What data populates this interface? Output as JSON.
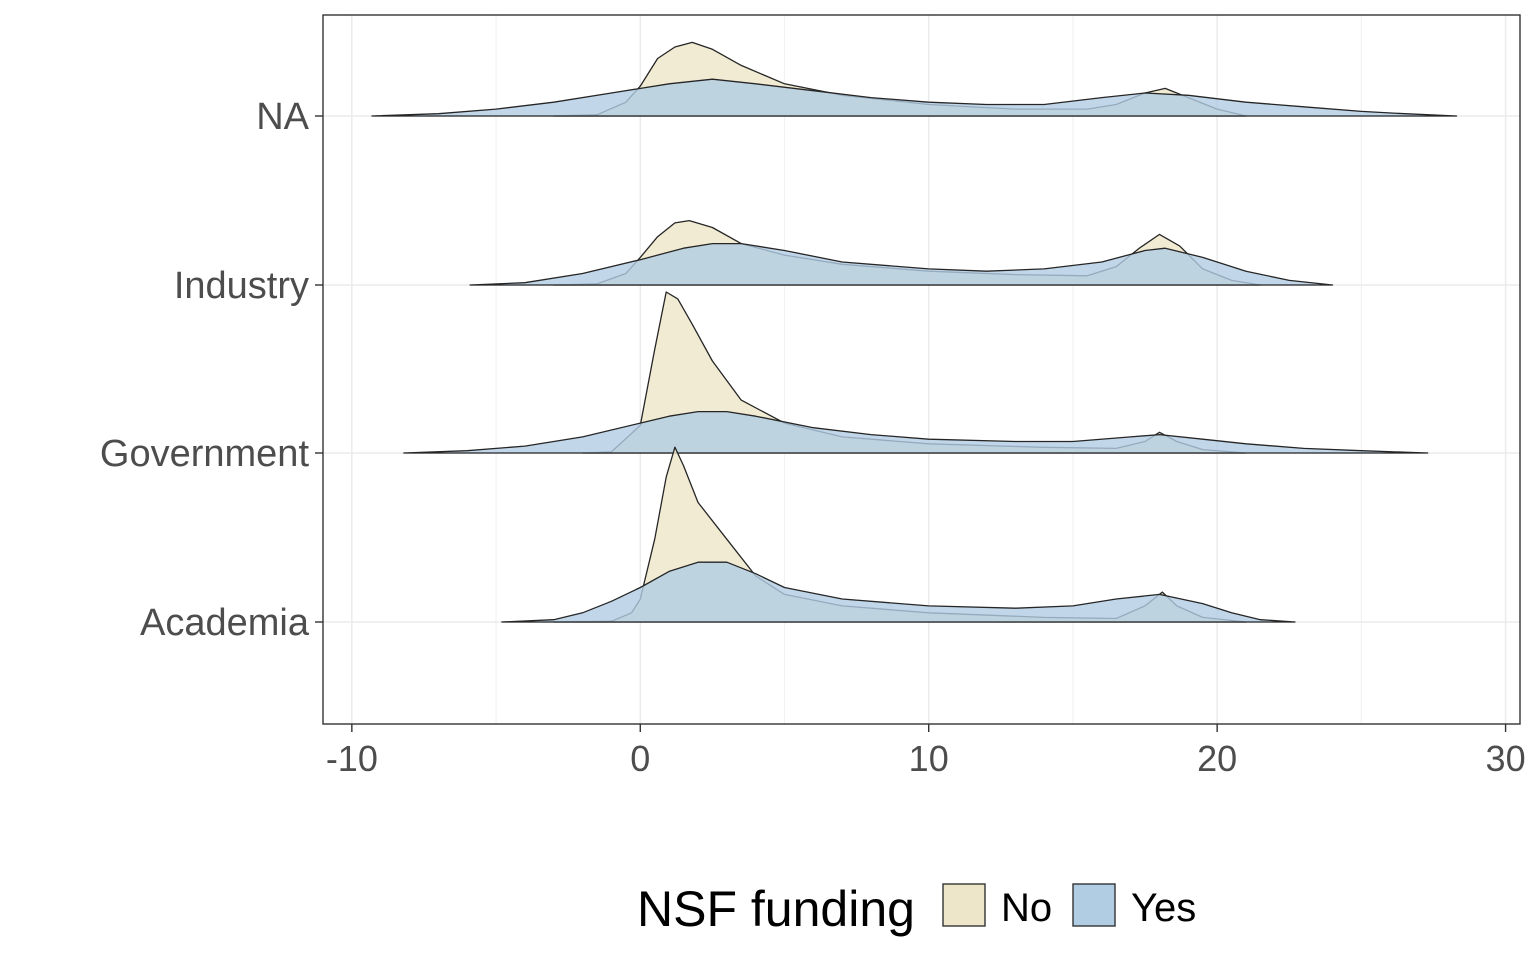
{
  "chart_data": {
    "type": "ridgeline-density",
    "title": "",
    "xlabel": "",
    "ylabel": "",
    "xlim": [
      -11,
      30.5
    ],
    "x_ticks": [
      -10,
      0,
      10,
      20,
      30
    ],
    "x_tick_labels": [
      "-10",
      "0",
      "10",
      "20",
      "30"
    ],
    "categories": [
      "Academia",
      "Government",
      "Industry",
      "NA"
    ],
    "grid": true,
    "legend": {
      "title": "NSF funding",
      "position": "bottom",
      "entries": [
        {
          "label": "No",
          "color": "#EEE6C8"
        },
        {
          "label": "Yes",
          "color": "#B1CDE3"
        }
      ]
    },
    "series": [
      {
        "name": "No",
        "color": "#EEE6C8",
        "ridges": [
          {
            "category": "Academia",
            "points": [
              [
                -3,
                0
              ],
              [
                -1,
                0.003
              ],
              [
                -0.3,
                0.04
              ],
              [
                0,
                0.1
              ],
              [
                0.5,
                0.36
              ],
              [
                0.9,
                0.63
              ],
              [
                1.2,
                0.76
              ],
              [
                1.5,
                0.68
              ],
              [
                2,
                0.52
              ],
              [
                3,
                0.36
              ],
              [
                4,
                0.2
              ],
              [
                5,
                0.12
              ],
              [
                7,
                0.07
              ],
              [
                10,
                0.04
              ],
              [
                14,
                0.02
              ],
              [
                16.5,
                0.015
              ],
              [
                17.5,
                0.07
              ],
              [
                18.1,
                0.13
              ],
              [
                18.6,
                0.07
              ],
              [
                19.5,
                0.02
              ],
              [
                21,
                0
              ]
            ]
          },
          {
            "category": "Government",
            "points": [
              [
                -2,
                0
              ],
              [
                -1,
                0.005
              ],
              [
                0,
                0.12
              ],
              [
                0.5,
                0.45
              ],
              [
                0.9,
                0.7
              ],
              [
                1.3,
                0.67
              ],
              [
                1.8,
                0.56
              ],
              [
                2.5,
                0.4
              ],
              [
                3.5,
                0.23
              ],
              [
                5,
                0.13
              ],
              [
                7,
                0.07
              ],
              [
                10,
                0.04
              ],
              [
                14,
                0.025
              ],
              [
                16.5,
                0.02
              ],
              [
                17.5,
                0.05
              ],
              [
                18,
                0.09
              ],
              [
                18.6,
                0.05
              ],
              [
                19.5,
                0.015
              ],
              [
                21,
                0
              ]
            ]
          },
          {
            "category": "Industry",
            "points": [
              [
                -3,
                0
              ],
              [
                -1.5,
                0.005
              ],
              [
                -0.5,
                0.05
              ],
              [
                0,
                0.12
              ],
              [
                0.6,
                0.21
              ],
              [
                1.2,
                0.27
              ],
              [
                1.7,
                0.28
              ],
              [
                2.5,
                0.25
              ],
              [
                3.5,
                0.18
              ],
              [
                5,
                0.13
              ],
              [
                7,
                0.09
              ],
              [
                10,
                0.06
              ],
              [
                13,
                0.045
              ],
              [
                15.5,
                0.04
              ],
              [
                16.5,
                0.08
              ],
              [
                17.3,
                0.16
              ],
              [
                18,
                0.22
              ],
              [
                18.7,
                0.17
              ],
              [
                19.5,
                0.07
              ],
              [
                20.5,
                0.02
              ],
              [
                21.5,
                0
              ]
            ]
          },
          {
            "category": "NA",
            "points": [
              [
                -3,
                0
              ],
              [
                -1.5,
                0.005
              ],
              [
                -0.5,
                0.06
              ],
              [
                0,
                0.13
              ],
              [
                0.6,
                0.25
              ],
              [
                1.2,
                0.3
              ],
              [
                1.8,
                0.32
              ],
              [
                2.5,
                0.29
              ],
              [
                3.5,
                0.22
              ],
              [
                5,
                0.14
              ],
              [
                7,
                0.09
              ],
              [
                10,
                0.05
              ],
              [
                13,
                0.03
              ],
              [
                15.5,
                0.03
              ],
              [
                16.5,
                0.05
              ],
              [
                17.5,
                0.1
              ],
              [
                18.2,
                0.12
              ],
              [
                19,
                0.08
              ],
              [
                20,
                0.03
              ],
              [
                21,
                0
              ]
            ]
          }
        ]
      },
      {
        "name": "Yes",
        "color": "#B1CDE3",
        "ridges": [
          {
            "category": "Academia",
            "points": [
              [
                -4.8,
                0
              ],
              [
                -3,
                0.01
              ],
              [
                -2,
                0.04
              ],
              [
                -1,
                0.09
              ],
              [
                0,
                0.15
              ],
              [
                1,
                0.22
              ],
              [
                2,
                0.26
              ],
              [
                3,
                0.26
              ],
              [
                4,
                0.21
              ],
              [
                5,
                0.15
              ],
              [
                7,
                0.1
              ],
              [
                10,
                0.07
              ],
              [
                13,
                0.06
              ],
              [
                15,
                0.07
              ],
              [
                16.5,
                0.1
              ],
              [
                18,
                0.12
              ],
              [
                19.5,
                0.08
              ],
              [
                20.5,
                0.04
              ],
              [
                21.5,
                0.01
              ],
              [
                22.7,
                0
              ]
            ]
          },
          {
            "category": "Government",
            "points": [
              [
                -8.2,
                0
              ],
              [
                -6,
                0.01
              ],
              [
                -4,
                0.03
              ],
              [
                -2,
                0.07
              ],
              [
                0,
                0.13
              ],
              [
                1,
                0.16
              ],
              [
                2,
                0.18
              ],
              [
                3,
                0.18
              ],
              [
                4,
                0.16
              ],
              [
                6,
                0.11
              ],
              [
                8,
                0.08
              ],
              [
                10,
                0.06
              ],
              [
                13,
                0.05
              ],
              [
                15,
                0.05
              ],
              [
                17,
                0.07
              ],
              [
                18,
                0.08
              ],
              [
                19.5,
                0.06
              ],
              [
                21,
                0.04
              ],
              [
                23,
                0.02
              ],
              [
                25,
                0.01
              ],
              [
                27.3,
                0
              ]
            ]
          },
          {
            "category": "Industry",
            "points": [
              [
                -5.9,
                0
              ],
              [
                -4,
                0.01
              ],
              [
                -2,
                0.05
              ],
              [
                0,
                0.11
              ],
              [
                1.5,
                0.16
              ],
              [
                2.5,
                0.18
              ],
              [
                3.5,
                0.18
              ],
              [
                5,
                0.15
              ],
              [
                7,
                0.1
              ],
              [
                10,
                0.07
              ],
              [
                12,
                0.06
              ],
              [
                14,
                0.07
              ],
              [
                16,
                0.1
              ],
              [
                17.5,
                0.15
              ],
              [
                18.2,
                0.16
              ],
              [
                19.5,
                0.12
              ],
              [
                21,
                0.06
              ],
              [
                22.5,
                0.02
              ],
              [
                24,
                0
              ]
            ]
          },
          {
            "category": "NA",
            "points": [
              [
                -9.3,
                0
              ],
              [
                -7,
                0.01
              ],
              [
                -5,
                0.03
              ],
              [
                -3,
                0.06
              ],
              [
                -1,
                0.1
              ],
              [
                1,
                0.14
              ],
              [
                2.5,
                0.16
              ],
              [
                4,
                0.14
              ],
              [
                6,
                0.11
              ],
              [
                8,
                0.08
              ],
              [
                10,
                0.06
              ],
              [
                12,
                0.05
              ],
              [
                14,
                0.05
              ],
              [
                16,
                0.08
              ],
              [
                17.5,
                0.1
              ],
              [
                19,
                0.09
              ],
              [
                21,
                0.06
              ],
              [
                23,
                0.04
              ],
              [
                25,
                0.02
              ],
              [
                26.5,
                0.01
              ],
              [
                28.3,
                0
              ]
            ]
          }
        ]
      }
    ]
  }
}
